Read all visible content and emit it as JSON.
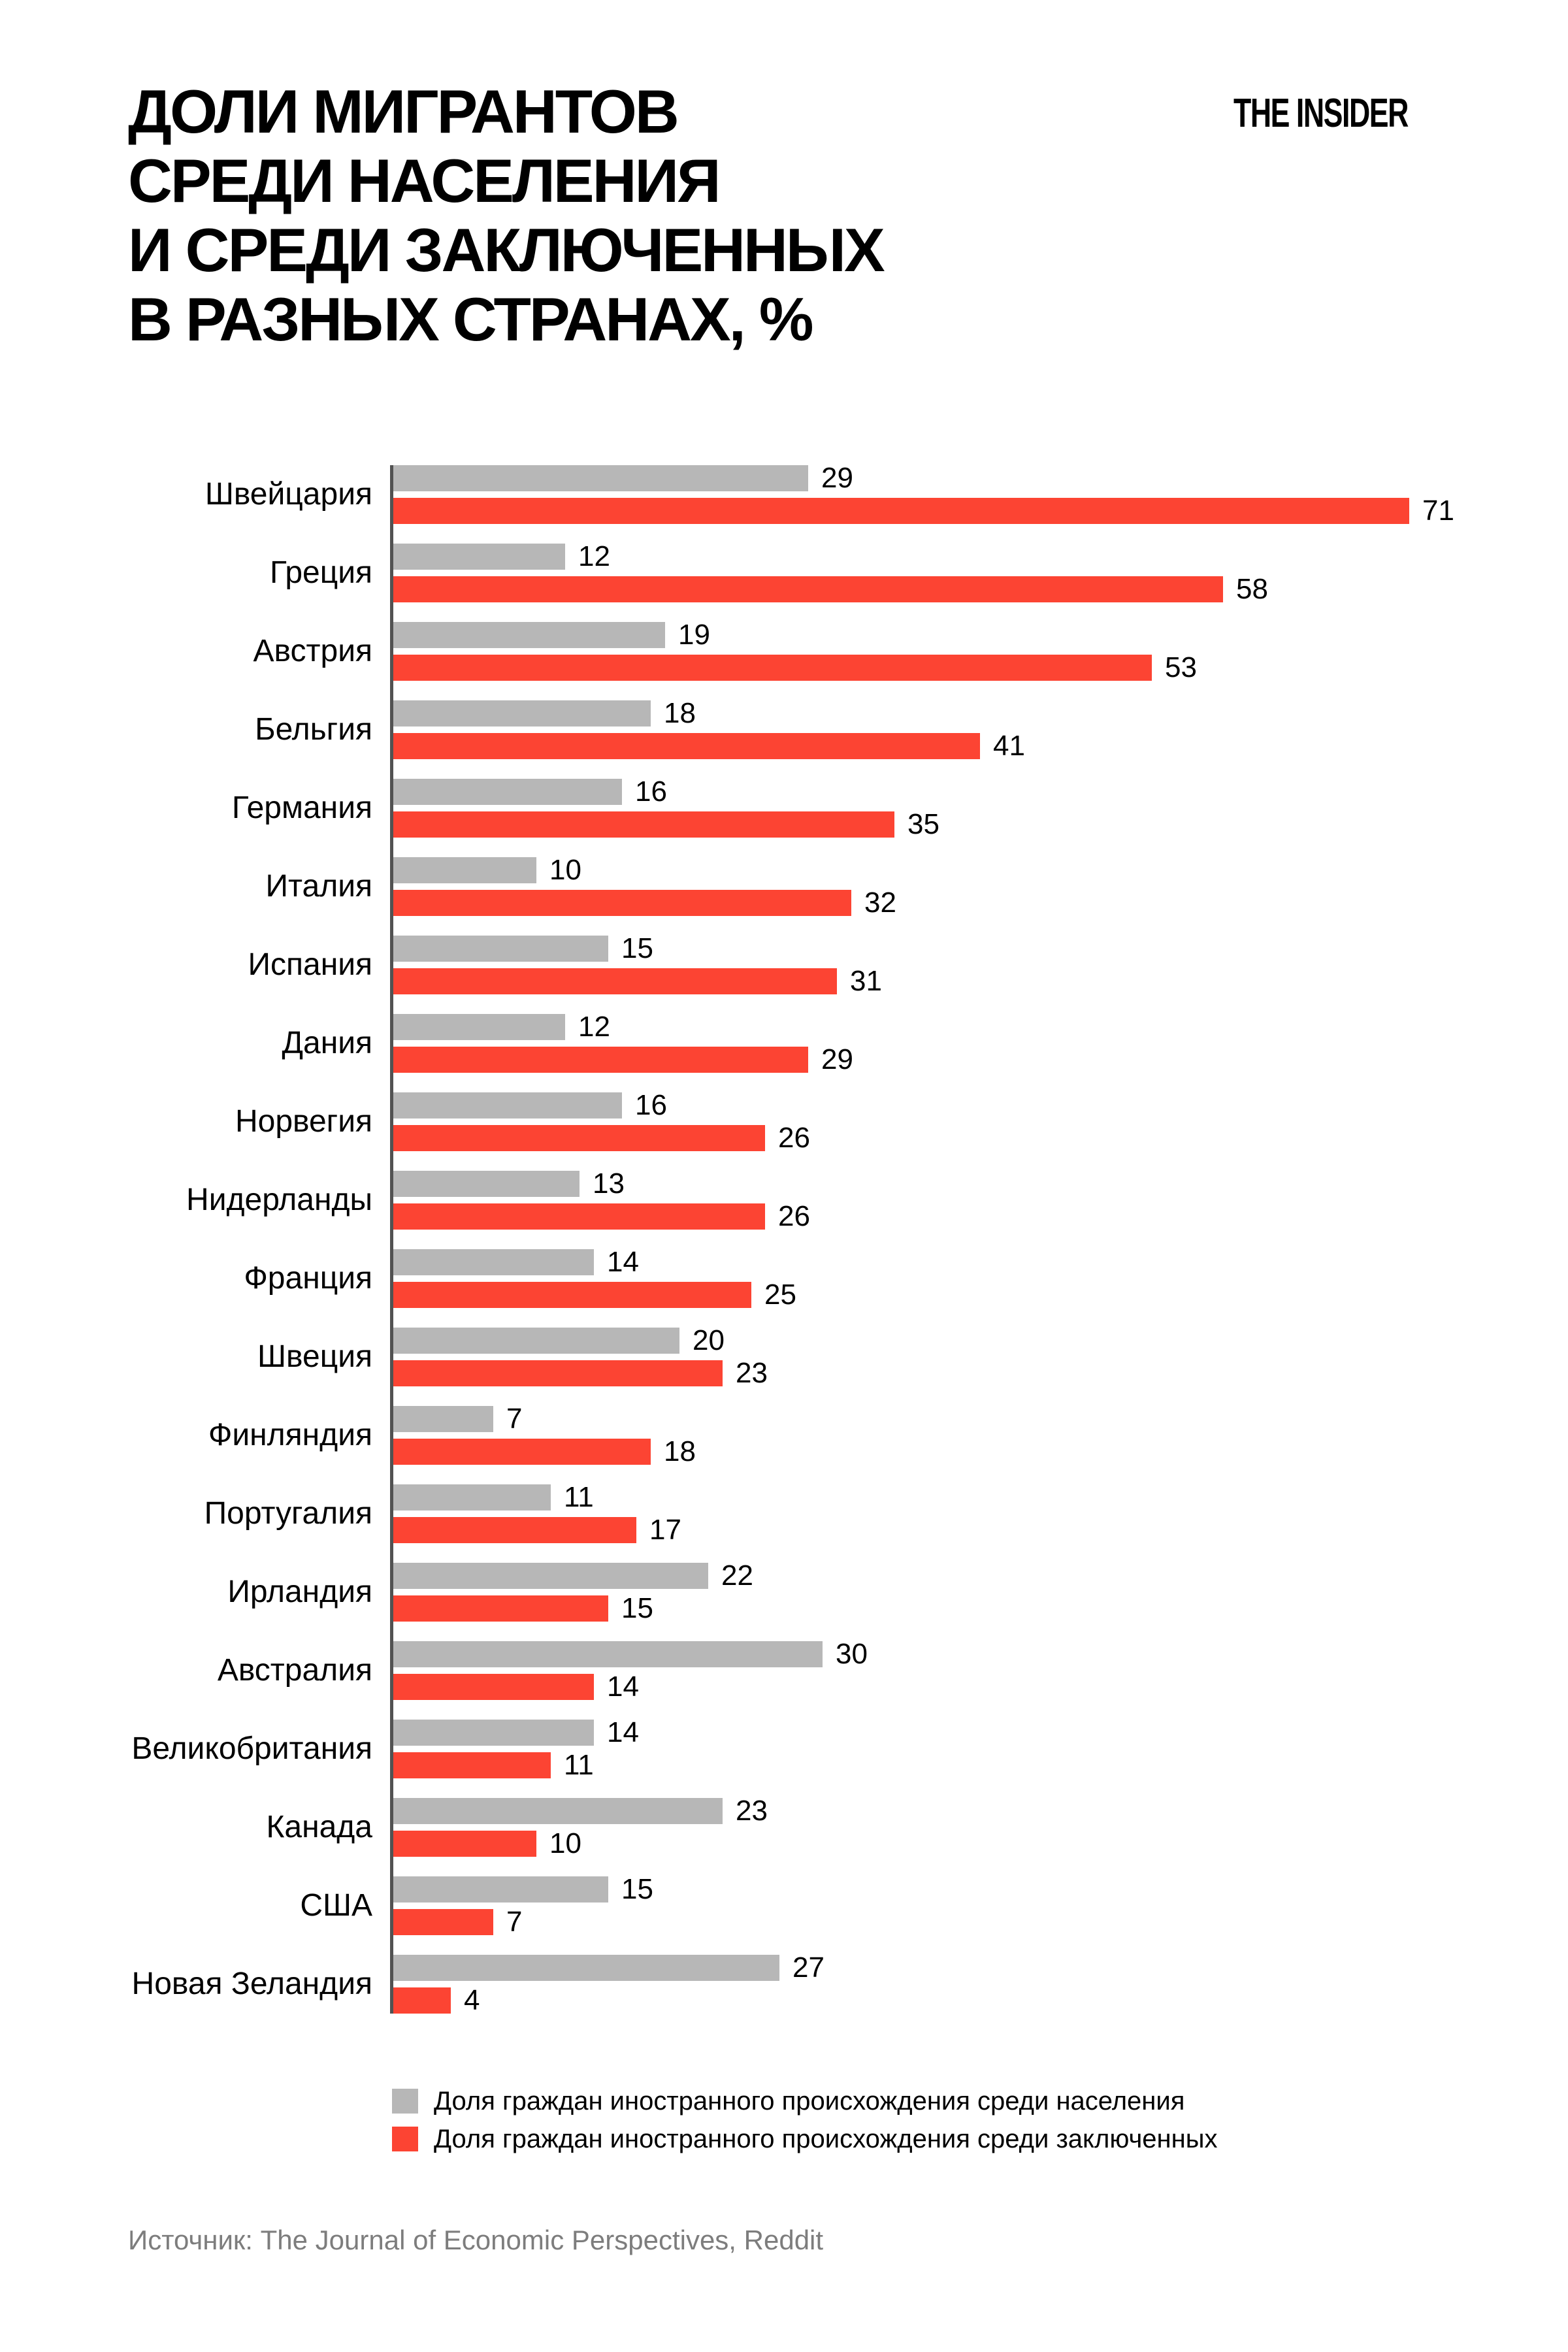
{
  "header": {
    "title_lines": [
      "ДОЛИ МИГРАНТОВ",
      "СРЕДИ НАСЕЛЕНИЯ",
      "И СРЕДИ ЗАКЛЮЧЕННЫХ",
      "В РАЗНЫХ СТРАНАХ, %"
    ],
    "logo": "THE INSIDER"
  },
  "chart_data": {
    "type": "bar",
    "orientation": "horizontal",
    "title": "Доли мигрантов среди населения и среди заключенных в разных странах, %",
    "categories": [
      "Швейцария",
      "Греция",
      "Австрия",
      "Бельгия",
      "Германия",
      "Италия",
      "Испания",
      "Дания",
      "Норвегия",
      "Нидерланды",
      "Франция",
      "Швеция",
      "Финляндия",
      "Португалия",
      "Ирландия",
      "Австралия",
      "Великобритания",
      "Канада",
      "США",
      "Новая Зеландия"
    ],
    "series": [
      {
        "name": "Доля граждан иностранного происхождения среди населения",
        "color": "#b7b7b7",
        "values": [
          29,
          12,
          19,
          18,
          16,
          10,
          15,
          12,
          16,
          13,
          14,
          20,
          7,
          11,
          22,
          30,
          14,
          23,
          15,
          27
        ]
      },
      {
        "name": "Доля граждан иностранного происхождения среди заключенных",
        "color": "#fc4433",
        "values": [
          71,
          58,
          53,
          41,
          35,
          32,
          31,
          29,
          26,
          26,
          25,
          23,
          18,
          17,
          15,
          14,
          11,
          10,
          7,
          4
        ]
      }
    ],
    "xlim": [
      0,
      71
    ],
    "value_labels": true,
    "grid": false,
    "legend_position": "bottom",
    "axis_color": "#525252"
  },
  "footer": {
    "source": "Источник: The Journal of Economic Perspectives, Reddit"
  }
}
